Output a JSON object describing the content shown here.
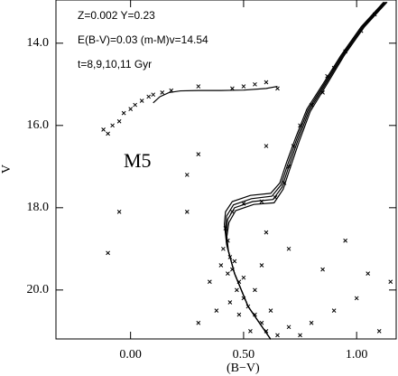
{
  "chart_data": {
    "type": "scatter",
    "annotations": [
      "Z=0.002 Y=0.23",
      "E(B-V)=0.03 (m-M)v=14.54",
      "t=8,9,10,11 Gyr",
      "M5"
    ],
    "xlabel": "(B−V)",
    "ylabel": "V",
    "xlim": [
      -0.33,
      1.175
    ],
    "ylim": [
      21.19,
      12.95
    ],
    "xticks": [
      {
        "value": 0,
        "label": "0.00"
      },
      {
        "value": 0.5,
        "label": "0.50"
      },
      {
        "value": 1,
        "label": "1.00"
      }
    ],
    "yticks": [
      {
        "value": 14,
        "label": "14.0"
      },
      {
        "value": 16,
        "label": "16.0"
      },
      {
        "value": 18,
        "label": "18.0"
      },
      {
        "value": 20,
        "label": "20.0"
      }
    ],
    "series": [
      {
        "mode": "markers",
        "color": "#000",
        "x": [
          -0.12,
          -0.1,
          -0.08,
          -0.05,
          -0.03,
          0.0,
          0.02,
          0.05,
          0.08,
          0.1,
          0.14,
          0.18,
          0.3,
          0.45,
          0.5,
          0.55,
          0.6,
          0.65,
          0.72,
          0.75,
          0.8,
          0.87,
          0.95,
          1.02,
          1.08,
          0.7,
          0.68,
          0.85,
          0.9,
          0.5,
          0.58,
          0.64,
          0.45,
          0.42,
          0.43,
          0.41,
          0.44,
          0.45,
          0.43,
          0.48,
          0.47,
          0.5,
          0.52,
          0.55,
          0.58,
          0.6,
          0.65,
          0.46,
          0.4,
          0.5,
          0.55,
          0.62,
          0.7,
          0.75,
          0.8,
          0.9,
          1.0,
          0.85,
          0.7,
          0.95,
          1.05,
          0.6,
          0.35,
          0.38,
          0.3,
          1.1,
          0.25,
          -0.05,
          -0.1,
          0.3,
          0.25,
          0.6,
          1.15,
          0.48,
          0.53,
          0.44,
          0.58
        ],
        "y": [
          16.1,
          16.2,
          16.0,
          15.9,
          15.7,
          15.6,
          15.5,
          15.4,
          15.3,
          15.25,
          15.2,
          15.15,
          15.05,
          15.1,
          15.05,
          15.0,
          14.95,
          15.1,
          16.5,
          16.0,
          15.5,
          14.8,
          14.2,
          13.7,
          13.3,
          17.0,
          17.4,
          15.2,
          14.6,
          17.9,
          17.85,
          17.75,
          18.1,
          18.5,
          18.8,
          19.0,
          19.2,
          19.5,
          19.6,
          19.8,
          20.0,
          20.2,
          20.4,
          20.6,
          20.8,
          21.0,
          21.1,
          19.3,
          19.4,
          19.7,
          20.0,
          20.5,
          20.9,
          21.1,
          20.8,
          20.5,
          20.2,
          19.5,
          19.0,
          18.8,
          19.6,
          18.6,
          19.8,
          20.5,
          20.8,
          21.0,
          18.1,
          18.1,
          19.1,
          16.7,
          17.2,
          16.5,
          19.8,
          20.6,
          21.0,
          20.3,
          19.4
        ]
      },
      {
        "mode": "lines",
        "color": "#000",
        "x": [
          0.62,
          0.52,
          0.46,
          0.425,
          0.415,
          0.42,
          0.45,
          0.53,
          0.62,
          0.66,
          0.69,
          0.73,
          0.78,
          0.85,
          0.93,
          1.02,
          1.12
        ],
        "y": [
          21.2,
          20.4,
          19.6,
          18.9,
          18.4,
          18.1,
          17.85,
          17.7,
          17.65,
          17.4,
          16.9,
          16.3,
          15.6,
          15.0,
          14.3,
          13.6,
          13.0
        ]
      },
      {
        "mode": "lines",
        "color": "#000",
        "x": [
          0.62,
          0.52,
          0.46,
          0.428,
          0.42,
          0.425,
          0.455,
          0.535,
          0.625,
          0.665,
          0.695,
          0.735,
          0.785,
          0.855,
          0.935,
          1.025,
          1.125
        ],
        "y": [
          21.2,
          20.4,
          19.6,
          18.95,
          18.5,
          18.2,
          17.93,
          17.78,
          17.72,
          17.45,
          16.95,
          16.33,
          15.62,
          15.01,
          14.3,
          13.6,
          13.0
        ]
      },
      {
        "mode": "lines",
        "color": "#000",
        "x": [
          0.62,
          0.52,
          0.46,
          0.43,
          0.423,
          0.43,
          0.46,
          0.54,
          0.63,
          0.67,
          0.7,
          0.74,
          0.79,
          0.86,
          0.94,
          1.03,
          1.13
        ],
        "y": [
          21.2,
          20.4,
          19.6,
          19.0,
          18.6,
          18.28,
          18.0,
          17.85,
          17.8,
          17.5,
          17.0,
          16.36,
          15.64,
          15.02,
          14.3,
          13.6,
          13.0
        ]
      },
      {
        "mode": "lines",
        "color": "#000",
        "x": [
          0.62,
          0.52,
          0.46,
          0.433,
          0.426,
          0.435,
          0.465,
          0.545,
          0.635,
          0.675,
          0.705,
          0.745,
          0.795,
          0.865,
          0.945,
          1.035,
          1.135
        ],
        "y": [
          21.2,
          20.4,
          19.6,
          19.05,
          18.7,
          18.36,
          18.07,
          17.92,
          17.88,
          17.55,
          17.05,
          16.4,
          15.66,
          15.03,
          14.3,
          13.6,
          13.0
        ]
      },
      {
        "mode": "lines",
        "color": "#000",
        "x": [
          0.1,
          0.13,
          0.17,
          0.22,
          0.3,
          0.4,
          0.5,
          0.6,
          0.65
        ],
        "y": [
          15.45,
          15.3,
          15.2,
          15.16,
          15.15,
          15.15,
          15.14,
          15.1,
          15.05
        ]
      }
    ]
  }
}
